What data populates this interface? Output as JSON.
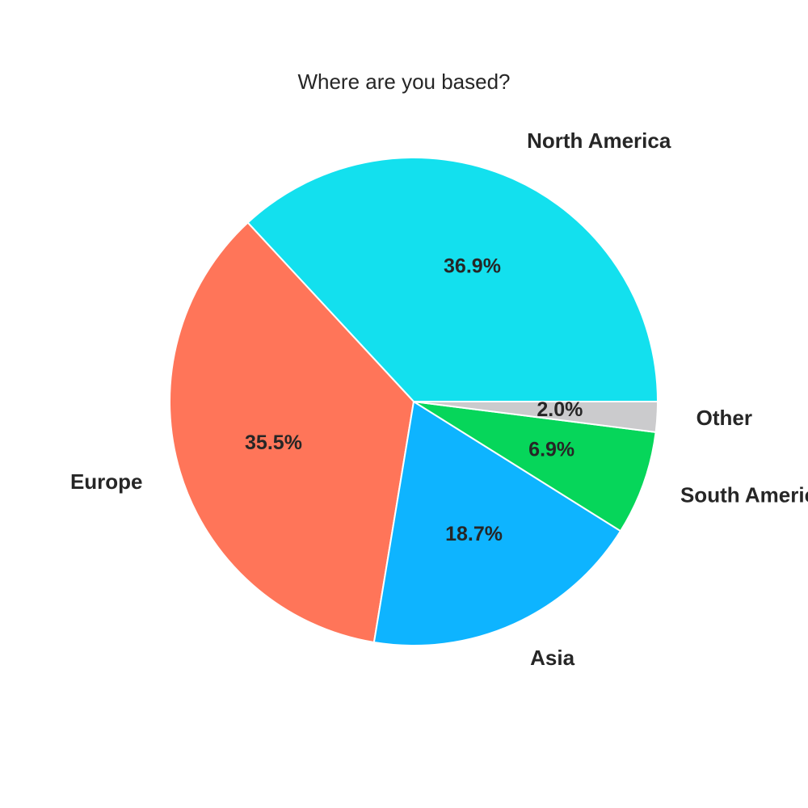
{
  "chart_data": {
    "type": "pie",
    "title": "Where are you based?",
    "labels": [
      "North America",
      "Europe",
      "Asia",
      "South America",
      "Other"
    ],
    "values": [
      36.9,
      35.5,
      18.7,
      6.9,
      2.0
    ],
    "value_labels": [
      "36.9%",
      "35.5%",
      "18.7%",
      "6.9%",
      "2.0%"
    ],
    "colors": [
      "#13e0ee",
      "#ff7559",
      "#0eb4ff",
      "#06d65a",
      "#cbcbcd"
    ],
    "start_angle_deg": 0,
    "direction": "counterclockwise"
  }
}
